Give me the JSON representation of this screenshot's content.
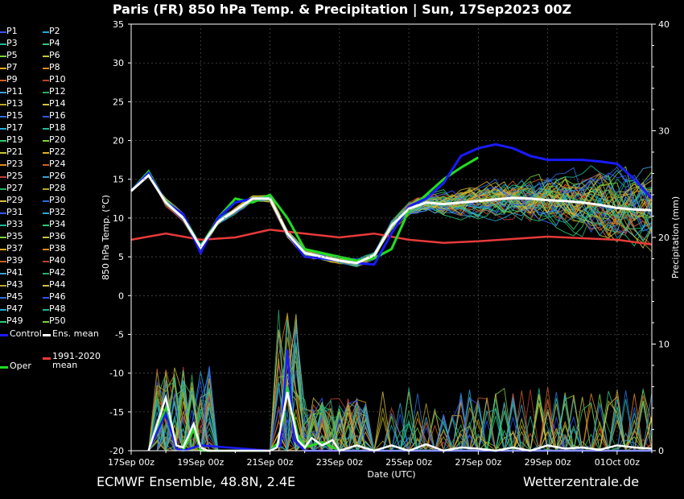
{
  "title": "Paris  (FR)  850 hPa Temp. & Precipitation | Sun, 17Sep2023 00Z",
  "footer_left": "ECMWF Ensemble, 48.8N, 2.4E",
  "footer_right": "Wetterzentrale.de",
  "legend": {
    "members": [
      "P1",
      "P2",
      "P3",
      "P4",
      "P5",
      "P6",
      "P7",
      "P8",
      "P9",
      "P10",
      "P11",
      "P12",
      "P13",
      "P14",
      "P15",
      "P16",
      "P17",
      "P18",
      "P19",
      "P20",
      "P21",
      "P22",
      "P23",
      "P24",
      "P25",
      "P26",
      "P27",
      "P28",
      "P29",
      "P30",
      "P31",
      "P32",
      "P33",
      "P34",
      "P35",
      "P36",
      "P37",
      "P38",
      "P39",
      "P40",
      "P41",
      "P42",
      "P43",
      "P44",
      "P45",
      "P46",
      "P47",
      "P48",
      "P49",
      "P50"
    ],
    "control": "Control",
    "ens_mean": "Ens. mean",
    "climate": "1991-2020\nmean",
    "oper": "Oper"
  },
  "colors": {
    "control": "#1a1aff",
    "ens_mean": "#ffffff",
    "climate": "#e83a3a",
    "oper": "#22dd22",
    "member_palette": [
      "#3355ff",
      "#22aadd",
      "#1fb89a",
      "#2ecc71",
      "#7fd23a",
      "#c8c832",
      "#e0b020",
      "#e08a20",
      "#d06028",
      "#c04030",
      "#3fa0d0",
      "#28b060",
      "#b8a828",
      "#d8c040",
      "#2a70e0"
    ]
  },
  "chart_data": {
    "type": "line",
    "xlabel": "Date (UTC)",
    "ylabel": "850 hPa Temp. (°C)",
    "y2label": "Precipitation (mm)",
    "ylim": [
      -20,
      35
    ],
    "y2lim": [
      0,
      40
    ],
    "yticks": [
      -20,
      -15,
      -10,
      -5,
      0,
      5,
      10,
      15,
      20,
      25,
      30,
      35
    ],
    "y2ticks": [
      0,
      10,
      20,
      30,
      40
    ],
    "xlim_days": [
      0,
      15
    ],
    "xticks": [
      {
        "day": 0,
        "label": "17Sep 00z"
      },
      {
        "day": 2,
        "label": "19Sep 00z"
      },
      {
        "day": 4,
        "label": "21Sep 00z"
      },
      {
        "day": 6,
        "label": "23Sep 00z"
      },
      {
        "day": 8,
        "label": "25Sep 00z"
      },
      {
        "day": 10,
        "label": "27Sep 00z"
      },
      {
        "day": 12,
        "label": "29Sep 00z"
      },
      {
        "day": 14,
        "label": "01Oct 00z"
      }
    ],
    "ens_mean_temp": {
      "day": [
        0,
        0.5,
        1,
        1.5,
        2,
        2.5,
        3,
        3.5,
        4,
        4.5,
        5,
        5.5,
        6,
        6.5,
        7,
        7.5,
        8,
        8.5,
        9,
        9.5,
        10,
        10.5,
        11,
        11.5,
        12,
        12.5,
        13,
        13.5,
        14,
        14.5,
        15
      ],
      "value": [
        13.5,
        15.5,
        12,
        10,
        6.2,
        9.5,
        11,
        12.5,
        12.5,
        8,
        5.5,
        5,
        4.5,
        4.2,
        5.2,
        9,
        11.2,
        12,
        11.8,
        12,
        12.2,
        12.4,
        12.6,
        12.5,
        12.3,
        12.2,
        12,
        11.7,
        11.3,
        11.1,
        11
      ]
    },
    "control_temp": {
      "day": [
        0,
        0.5,
        1,
        1.5,
        2,
        2.5,
        3,
        3.5,
        4,
        4.5,
        5,
        5.5,
        6,
        6.5,
        7,
        7.5,
        8,
        8.5,
        9,
        9.5,
        10,
        10.5,
        11,
        11.5,
        12,
        12.5,
        13,
        13.5,
        14,
        14.5,
        15
      ],
      "value": [
        13.5,
        15.8,
        12,
        10.5,
        5.5,
        10,
        12,
        12.5,
        12.5,
        8,
        5,
        4.8,
        4.5,
        4.2,
        4,
        8,
        11.5,
        12.5,
        14.5,
        18,
        19,
        19.5,
        19,
        18,
        17.5,
        17.5,
        17.5,
        17.3,
        17,
        15,
        12.5
      ]
    },
    "oper_temp": {
      "day": [
        0,
        0.5,
        1,
        1.5,
        2,
        2.5,
        3,
        3.5,
        4,
        4.5,
        5,
        5.5,
        6,
        6.5,
        7,
        7.5,
        8,
        8.5,
        9,
        9.5,
        10
      ],
      "value": [
        13.5,
        16,
        12,
        10,
        6,
        10,
        12.5,
        12,
        13,
        10,
        6,
        5.5,
        5,
        4.5,
        4.8,
        6,
        11,
        13,
        15,
        16.5,
        17.8
      ]
    },
    "climate_temp": {
      "day": [
        0,
        1,
        2,
        3,
        4,
        5,
        6,
        7,
        8,
        9,
        10,
        11,
        12,
        13,
        14,
        15
      ],
      "value": [
        7.2,
        8,
        7.2,
        7.5,
        8.5,
        8,
        7.5,
        8,
        7.2,
        6.8,
        7,
        7.3,
        7.6,
        7.4,
        7.2,
        6.6
      ]
    },
    "ens_mean_precip": {
      "day": [
        0.5,
        1,
        1.3,
        1.5,
        1.8,
        2,
        2.2,
        2.5,
        3,
        3.5,
        4,
        4.2,
        4.5,
        4.8,
        5,
        5.2,
        5.5,
        5.8,
        6,
        6.3,
        6.5,
        7,
        7.5,
        8,
        8.5,
        9,
        9.5,
        10,
        10.5,
        11,
        11.5,
        12,
        12.5,
        13,
        13.5,
        14,
        14.5,
        15
      ],
      "value": [
        0,
        5,
        0.5,
        0.3,
        2.5,
        0.3,
        0,
        0,
        0,
        0,
        0,
        0.3,
        5.5,
        1,
        0.3,
        1.2,
        0.5,
        1,
        0,
        0.3,
        0.5,
        0,
        0.5,
        0,
        0.6,
        0,
        0.3,
        0.2,
        0,
        0.3,
        0,
        0.5,
        0.2,
        0.3,
        0.1,
        0.5,
        0.3,
        0.2
      ]
    },
    "control_precip": {
      "day": [
        0.5,
        1,
        1.3,
        1.5,
        2,
        4,
        4.3,
        4.5,
        4.7,
        5,
        5.5,
        6,
        7,
        15
      ],
      "value": [
        0,
        3.5,
        0.2,
        0,
        0.5,
        0,
        0.5,
        9.5,
        1,
        0,
        0,
        0,
        0,
        0
      ]
    },
    "oper_precip": {
      "day": [
        0.5,
        1,
        1.3,
        1.5,
        1.8,
        2,
        4,
        4.3,
        4.5,
        4.8,
        5,
        5.5,
        6,
        7,
        15
      ],
      "value": [
        0,
        4,
        0.2,
        0,
        2,
        0,
        0,
        1,
        6,
        1.5,
        0.3,
        0.8,
        0,
        0,
        0
      ]
    }
  }
}
